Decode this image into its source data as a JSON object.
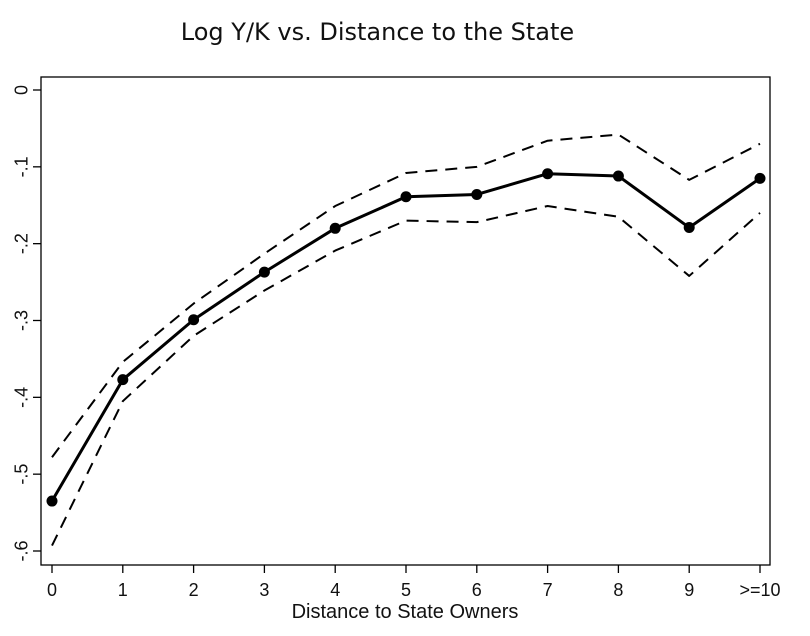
{
  "chart_data": {
    "type": "line",
    "title": "Log Y/K vs. Distance to the State",
    "xlabel": "Distance to State Owners",
    "ylabel": "",
    "categories": [
      "0",
      "1",
      "2",
      "3",
      "4",
      "5",
      "6",
      "7",
      "8",
      "9",
      ">=10"
    ],
    "ylim": [
      -0.6,
      0
    ],
    "yticks": [
      0,
      -0.1,
      -0.2,
      -0.3,
      -0.4,
      -0.5,
      -0.6
    ],
    "ytick_labels": [
      "0",
      "-.1",
      "-.2",
      "-.3",
      "-.4",
      "-.5",
      "-.6"
    ],
    "grid": false,
    "series": [
      {
        "style": "solid-with-markers",
        "values": [
          -0.535,
          -0.377,
          -0.299,
          -0.237,
          -0.18,
          -0.139,
          -0.136,
          -0.109,
          -0.112,
          -0.179,
          -0.115
        ]
      },
      {
        "style": "dashed",
        "values": [
          -0.478,
          -0.354,
          -0.278,
          -0.213,
          -0.151,
          -0.108,
          -0.1,
          -0.066,
          -0.058,
          -0.117,
          -0.07
        ]
      },
      {
        "style": "dashed",
        "values": [
          -0.593,
          -0.405,
          -0.32,
          -0.261,
          -0.209,
          -0.17,
          -0.172,
          -0.151,
          -0.165,
          -0.242,
          -0.16
        ]
      }
    ],
    "colors": {
      "line": "#000000"
    }
  }
}
